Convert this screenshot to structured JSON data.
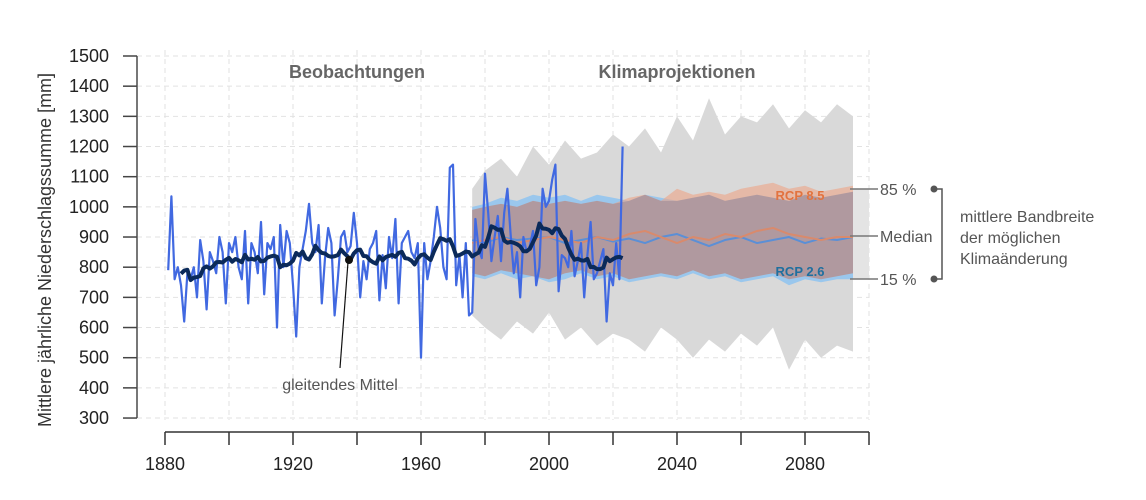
{
  "chart_data": {
    "type": "line",
    "ylabel": "Mittlere jährliche Niederschlagssumme [mm]",
    "xlabel": "",
    "ylim": [
      300,
      1500
    ],
    "xlim": [
      1876,
      2100
    ],
    "yticks": [
      300,
      400,
      500,
      600,
      700,
      800,
      900,
      1000,
      1100,
      1200,
      1300,
      1400,
      1500
    ],
    "xticks_labeled": [
      1880,
      1920,
      1960,
      2000,
      2040,
      2080
    ],
    "xticks_minor": [
      1900,
      1940,
      1980,
      2020,
      2060,
      2100
    ],
    "grid": true,
    "section_labels": {
      "observations": "Beobachtungen",
      "projections": "Klimaprojektionen"
    },
    "moving_average_label": "gleitendes Mittel",
    "moving_average_window_years": 11,
    "observations": {
      "start_year": 1881,
      "values": [
        790,
        1035,
        760,
        800,
        740,
        620,
        780,
        760,
        800,
        700,
        890,
        820,
        660,
        850,
        820,
        780,
        900,
        850,
        680,
        880,
        850,
        900,
        800,
        760,
        920,
        680,
        880,
        850,
        780,
        950,
        710,
        880,
        860,
        900,
        600,
        940,
        800,
        920,
        880,
        740,
        570,
        800,
        860,
        920,
        1010,
        880,
        850,
        940,
        680,
        830,
        930,
        880,
        640,
        760,
        900,
        920,
        850,
        870,
        980,
        880,
        700,
        820,
        760,
        860,
        880,
        920,
        690,
        840,
        730,
        900,
        830,
        960,
        680,
        880,
        900,
        920,
        850,
        830,
        880,
        500,
        880,
        760,
        820,
        900,
        1000,
        930,
        800,
        760,
        1130,
        1140,
        740,
        840,
        700,
        880,
        640,
        650,
        960,
        860,
        830,
        1110,
        980,
        820,
        900,
        970,
        820,
        980,
        1060,
        910,
        780,
        850,
        700,
        900,
        850,
        870,
        920,
        740,
        800,
        1060,
        1000,
        1020,
        1090,
        1140,
        720,
        840,
        830,
        800,
        920,
        770,
        820,
        880,
        700,
        840,
        950,
        760,
        780,
        820,
        860,
        620,
        780,
        740,
        880,
        760,
        1200
      ]
    },
    "projections": {
      "years": [
        1976,
        1980,
        1985,
        1990,
        1995,
        2000,
        2005,
        2010,
        2015,
        2020,
        2025,
        2030,
        2035,
        2040,
        2045,
        2050,
        2055,
        2060,
        2065,
        2070,
        2075,
        2080,
        2085,
        2090,
        2095
      ],
      "envelope_min": [
        640,
        600,
        560,
        620,
        580,
        650,
        560,
        600,
        540,
        580,
        560,
        520,
        600,
        560,
        500,
        560,
        520,
        580,
        540,
        600,
        460,
        560,
        500,
        540,
        520
      ],
      "envelope_max": [
        1060,
        1120,
        1160,
        1100,
        1200,
        1140,
        1220,
        1160,
        1180,
        1240,
        1200,
        1260,
        1180,
        1300,
        1220,
        1360,
        1240,
        1300,
        1280,
        1340,
        1260,
        1320,
        1280,
        1340,
        1300
      ],
      "rcp26": {
        "name": "RCP 2.6",
        "p15": [
          770,
          760,
          780,
          760,
          770,
          750,
          760,
          780,
          760,
          770,
          750,
          760,
          770,
          760,
          780,
          760,
          770,
          750,
          760,
          770,
          740,
          760,
          750,
          760,
          760
        ],
        "median": [
          890,
          880,
          900,
          890,
          895,
          900,
          880,
          890,
          900,
          885,
          895,
          880,
          900,
          910,
          890,
          870,
          890,
          900,
          880,
          890,
          900,
          880,
          895,
          890,
          900
        ],
        "p85": [
          1000,
          1010,
          1030,
          1020,
          1040,
          1030,
          1040,
          1020,
          1040,
          1030,
          1020,
          1040,
          1030,
          1020,
          1030,
          1040,
          1020,
          1030,
          1040,
          1030,
          1020,
          1040,
          1030,
          1040,
          1050
        ]
      },
      "rcp85": {
        "name": "RCP 8.5",
        "p15": [
          780,
          770,
          790,
          780,
          770,
          760,
          780,
          790,
          770,
          780,
          760,
          770,
          780,
          770,
          790,
          770,
          780,
          760,
          770,
          780,
          760,
          770,
          760,
          770,
          780
        ],
        "median": [
          880,
          890,
          900,
          880,
          890,
          900,
          890,
          880,
          900,
          890,
          910,
          920,
          900,
          880,
          900,
          890,
          910,
          900,
          920,
          930,
          910,
          900,
          890,
          900,
          900
        ],
        "p85": [
          990,
          1000,
          1010,
          1000,
          1020,
          1010,
          1020,
          1010,
          1020,
          1010,
          1030,
          1040,
          1020,
          1060,
          1040,
          1050,
          1040,
          1060,
          1070,
          1080,
          1060,
          1070,
          1050,
          1060,
          1070
        ]
      }
    },
    "legend": {
      "p85": "85 %",
      "median": "Median",
      "p15": "15 %",
      "bracket_label": [
        "mittlere Bandbreite",
        "der möglichen",
        "Klimaänderung"
      ]
    },
    "colors": {
      "observations": "#4169e1",
      "moving_average": "#0b2a5a",
      "rcp26_band": "#8ec3f0",
      "rcp85_band": "#eca385",
      "rcp26_text": "#1f6f9f",
      "rcp85_text": "#e2733f",
      "envelope": "#d9d9d9"
    }
  }
}
